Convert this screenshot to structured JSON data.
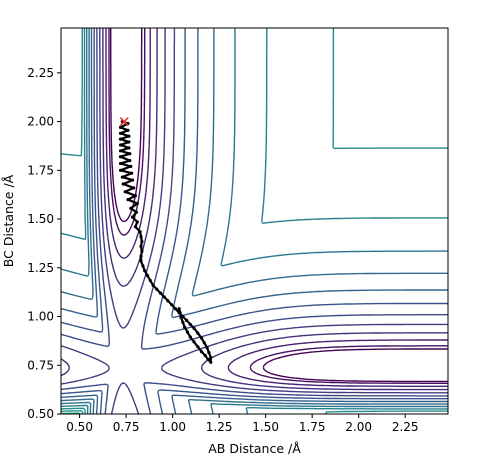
{
  "chart_data": {
    "type": "contour",
    "title": "",
    "xlabel": "AB Distance /Å",
    "ylabel": "BC Distance /Å",
    "xlim": [
      0.4,
      2.48
    ],
    "ylim": [
      0.5,
      2.48
    ],
    "xticks": [
      0.5,
      0.75,
      1.0,
      1.25,
      1.5,
      1.75,
      2.0,
      2.25
    ],
    "yticks": [
      0.5,
      0.75,
      1.0,
      1.25,
      1.5,
      1.75,
      2.0,
      2.25
    ],
    "xtick_labels": [
      "0.50",
      "0.75",
      "1.00",
      "1.25",
      "1.50",
      "1.75",
      "2.00",
      "2.25"
    ],
    "ytick_labels": [
      "0.50",
      "0.75",
      "1.00",
      "1.25",
      "1.50",
      "1.75",
      "2.00",
      "2.25"
    ],
    "colormap": "viridis",
    "contour_levels": 24,
    "grid": false,
    "legend": "none",
    "series": [
      {
        "kind": "trajectory",
        "color": "#000000",
        "points": [
          [
            0.73,
            2.0
          ],
          [
            0.76,
            1.99
          ],
          [
            0.72,
            1.97
          ],
          [
            0.76,
            1.955
          ],
          [
            0.72,
            1.94
          ],
          [
            0.765,
            1.925
          ],
          [
            0.72,
            1.91
          ],
          [
            0.765,
            1.895
          ],
          [
            0.72,
            1.88
          ],
          [
            0.765,
            1.865
          ],
          [
            0.72,
            1.85
          ],
          [
            0.77,
            1.835
          ],
          [
            0.72,
            1.82
          ],
          [
            0.77,
            1.8
          ],
          [
            0.72,
            1.785
          ],
          [
            0.775,
            1.77
          ],
          [
            0.72,
            1.75
          ],
          [
            0.78,
            1.735
          ],
          [
            0.73,
            1.715
          ],
          [
            0.785,
            1.7
          ],
          [
            0.735,
            1.68
          ],
          [
            0.79,
            1.66
          ],
          [
            0.745,
            1.64
          ],
          [
            0.8,
            1.62
          ],
          [
            0.76,
            1.6
          ],
          [
            0.81,
            1.58
          ],
          [
            0.775,
            1.555
          ],
          [
            0.805,
            1.535
          ],
          [
            0.785,
            1.51
          ],
          [
            0.81,
            1.485
          ],
          [
            0.8,
            1.46
          ],
          [
            0.825,
            1.435
          ],
          [
            0.83,
            1.41
          ],
          [
            0.835,
            1.385
          ],
          [
            0.83,
            1.36
          ],
          [
            0.835,
            1.335
          ],
          [
            0.83,
            1.31
          ],
          [
            0.83,
            1.285
          ],
          [
            0.84,
            1.26
          ],
          [
            0.85,
            1.235
          ],
          [
            0.865,
            1.21
          ],
          [
            0.88,
            1.185
          ],
          [
            0.895,
            1.16
          ],
          [
            0.915,
            1.14
          ],
          [
            0.935,
            1.12
          ],
          [
            0.955,
            1.1
          ],
          [
            0.975,
            1.08
          ],
          [
            0.995,
            1.06
          ],
          [
            1.015,
            1.04
          ],
          [
            1.035,
            1.02
          ],
          [
            1.055,
            1.0
          ],
          [
            1.075,
            0.98
          ],
          [
            1.095,
            0.96
          ],
          [
            1.115,
            0.94
          ],
          [
            1.135,
            0.915
          ],
          [
            1.155,
            0.89
          ],
          [
            1.17,
            0.865
          ],
          [
            1.185,
            0.84
          ],
          [
            1.195,
            0.815
          ],
          [
            1.205,
            0.79
          ],
          [
            1.205,
            0.765
          ],
          [
            1.19,
            0.78
          ],
          [
            1.175,
            0.8
          ],
          [
            1.155,
            0.82
          ],
          [
            1.135,
            0.845
          ],
          [
            1.115,
            0.87
          ],
          [
            1.095,
            0.895
          ],
          [
            1.08,
            0.92
          ],
          [
            1.065,
            0.945
          ],
          [
            1.055,
            0.97
          ],
          [
            1.045,
            0.995
          ],
          [
            1.04,
            1.02
          ],
          [
            1.035,
            1.04
          ]
        ]
      },
      {
        "kind": "start-marker",
        "marker": "x",
        "color": "#e8312a",
        "points": [
          [
            0.74,
            2.0
          ]
        ]
      }
    ]
  }
}
